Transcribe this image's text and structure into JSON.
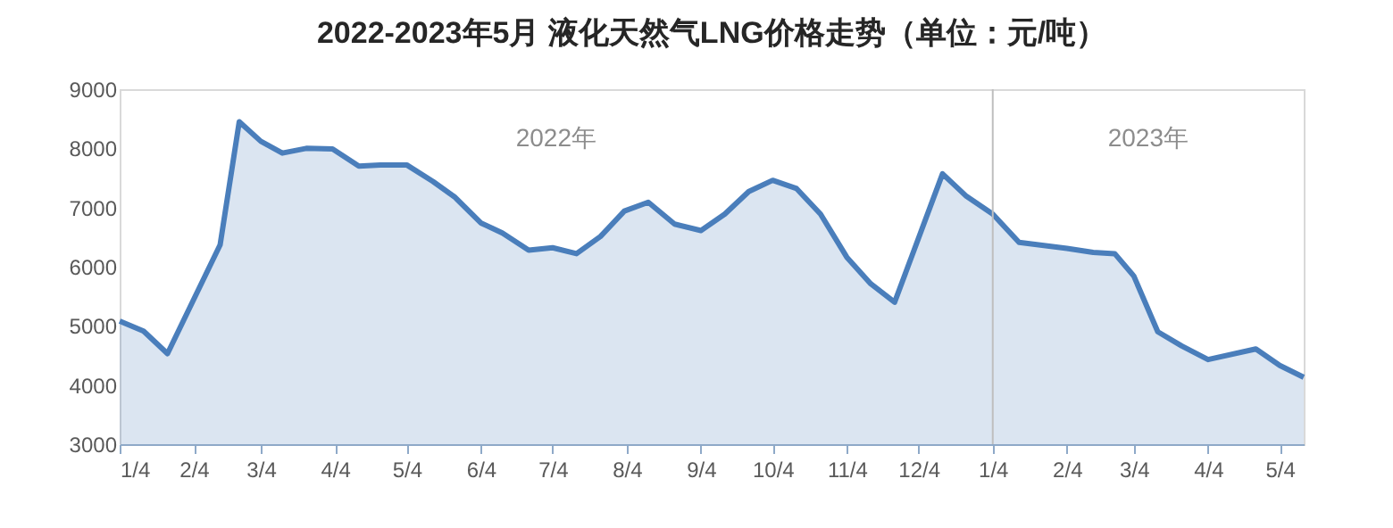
{
  "chart_data": {
    "type": "area",
    "title": "2022-2023年5月 液化天然气LNG价格走势（单位：元/吨）",
    "x": [
      "2022-01-04",
      "2022-01-14",
      "2022-01-24",
      "2022-02-15",
      "2022-02-23",
      "2022-03-04",
      "2022-03-13",
      "2022-03-23",
      "2022-04-03",
      "2022-04-14",
      "2022-04-23",
      "2022-05-04",
      "2022-05-15",
      "2022-05-24",
      "2022-06-04",
      "2022-06-13",
      "2022-06-24",
      "2022-07-04",
      "2022-07-14",
      "2022-07-24",
      "2022-08-03",
      "2022-08-13",
      "2022-08-24",
      "2022-09-04",
      "2022-09-14",
      "2022-09-24",
      "2022-10-04",
      "2022-10-14",
      "2022-10-24",
      "2022-11-04",
      "2022-11-14",
      "2022-11-24",
      "2022-12-14",
      "2022-12-24",
      "2023-01-04",
      "2023-01-15",
      "2023-02-04",
      "2023-02-15",
      "2023-02-24",
      "2023-03-04",
      "2023-03-14",
      "2023-03-24",
      "2023-04-04",
      "2023-04-24",
      "2023-05-04",
      "2023-05-14"
    ],
    "series": [
      {
        "color": "#4a7ebb",
        "values": [
          5080,
          4910,
          4530,
          6370,
          8450,
          8120,
          7920,
          8000,
          7990,
          7700,
          7720,
          7720,
          7440,
          7180,
          6740,
          6570,
          6280,
          6320,
          6220,
          6510,
          6940,
          7090,
          6720,
          6610,
          6890,
          7270,
          7460,
          7320,
          6890,
          6160,
          5710,
          5400,
          7570,
          7190,
          6890,
          6410,
          6310,
          6240,
          6220,
          5840,
          4900,
          4660,
          4430,
          4610,
          4330,
          4130
        ]
      }
    ],
    "xlim": [
      "2022-01-04",
      "2023-05-14"
    ],
    "xticks": [
      {
        "value": "2022-01-04",
        "label": "1/4"
      },
      {
        "value": "2022-02-04",
        "label": "2/4"
      },
      {
        "value": "2022-03-04",
        "label": "3/4"
      },
      {
        "value": "2022-04-04",
        "label": "4/4"
      },
      {
        "value": "2022-05-04",
        "label": "5/4"
      },
      {
        "value": "2022-06-04",
        "label": "6/4"
      },
      {
        "value": "2022-07-04",
        "label": "7/4"
      },
      {
        "value": "2022-08-04",
        "label": "8/4"
      },
      {
        "value": "2022-09-04",
        "label": "9/4"
      },
      {
        "value": "2022-10-04",
        "label": "10/4"
      },
      {
        "value": "2022-11-04",
        "label": "11/4"
      },
      {
        "value": "2022-12-04",
        "label": "12/4"
      },
      {
        "value": "2023-01-04",
        "label": "1/4"
      },
      {
        "value": "2023-02-04",
        "label": "2/4"
      },
      {
        "value": "2023-03-04",
        "label": "3/4"
      },
      {
        "value": "2023-04-04",
        "label": "4/4"
      },
      {
        "value": "2023-05-04",
        "label": "5/4"
      }
    ],
    "ylim": [
      3000,
      9000
    ],
    "yticks": [
      3000,
      4000,
      5000,
      6000,
      7000,
      8000,
      9000
    ],
    "ref_lines": [
      {
        "axis": "x",
        "value": "2023-01-04",
        "color": "#bfbfbf"
      }
    ],
    "annotations": [
      "2022年",
      "2023年"
    ],
    "grid": false
  }
}
